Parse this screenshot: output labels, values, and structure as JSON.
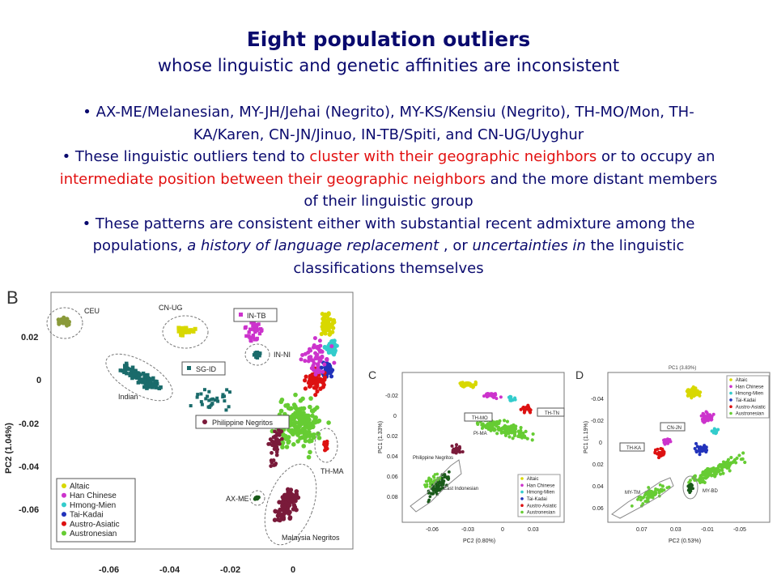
{
  "slide": {
    "title": "Eight population outliers",
    "subtitle": "whose linguistic and genetic affinities are inconsistent",
    "bullet1": "• AX-ME/Melanesian, MY-JH/Jehai (Negrito), MY-KS/Kensiu (Negrito), TH-MO/Mon, TH-KA/Karen, CN-JN/Jinuo, IN-TB/Spiti, and CN-UG/Uyghur",
    "bullet2_pre": "• These linguistic outliers tend to ",
    "bullet2_red1": "cluster with their geographic neighbors",
    "bullet2_mid": " or to occupy an ",
    "bullet2_red2": "intermediate position between their geographic neighbors",
    "bullet2_post": " and the more distant members of their linguistic group",
    "bullet3_pre": "• These patterns are consistent either with substantial recent admixture among the populations, ",
    "bullet3_ital1": "a history of language replacement",
    "bullet3_mid": " , or ",
    "bullet3_ital2": "uncertainties in",
    "bullet3_post": " the linguistic classifications themselves"
  },
  "legend": {
    "entries": [
      "Altaic",
      "Han Chinese",
      "Hmong-Mien",
      "Tai-Kadai",
      "Austro-Asiatic",
      "Austronesian"
    ],
    "colors": [
      "#d8d800",
      "#cc33cc",
      "#33cccc",
      "#2233bb",
      "#dd1111",
      "#66cc33"
    ]
  },
  "panelB": {
    "letter": "B",
    "ylabel": "PC2 (1.04%)",
    "xticks": [
      "-0.06",
      "-0.04",
      "-0.02",
      "0"
    ],
    "yticks": [
      "0.02",
      "0",
      "-0.02",
      "-0.04",
      "-0.06"
    ],
    "labels": {
      "ceu": "CEU",
      "cnug": "CN-UG",
      "intb": "IN-TB",
      "inni": "IN-NI",
      "sgid": "SG-ID",
      "indian": "Indian",
      "phil": "Philippine Negritos",
      "thma": "TH-MA",
      "axme": "AX-ME",
      "malay": "Malaysia Negritos"
    }
  },
  "panelC": {
    "letter": "C",
    "xlabel": "PC2 (0.80%)",
    "ylabel": "PC1 (1.33%)",
    "xticks": [
      "-0.06",
      "-0.03",
      "0",
      "0.03"
    ],
    "yticks": [
      "-0.02",
      "0",
      "0.02",
      "0.04",
      "0.06",
      "0.08"
    ],
    "labels": {
      "thmo": "TH-MO",
      "thtn": "TH-TN",
      "pima": "PI-MA",
      "phil": "Philippine Negritos",
      "eastind": "East Indonesian"
    }
  },
  "panelD": {
    "letter": "D",
    "xlabel": "PC2 (0.53%)",
    "ylabel": "PC1 (1.19%)",
    "toplabel": "PC1 (3.83%)",
    "xticks": [
      "0.07",
      "0.03",
      "-0.01",
      "-0.05"
    ],
    "yticks": [
      "-0.04",
      "-0.02",
      "0",
      "0.02",
      "0.04",
      "0.06"
    ],
    "labels": {
      "cnjn": "CN-JN",
      "thka": "TH-KA",
      "mytm": "MY-TM",
      "mybd": "MY-BD"
    }
  }
}
